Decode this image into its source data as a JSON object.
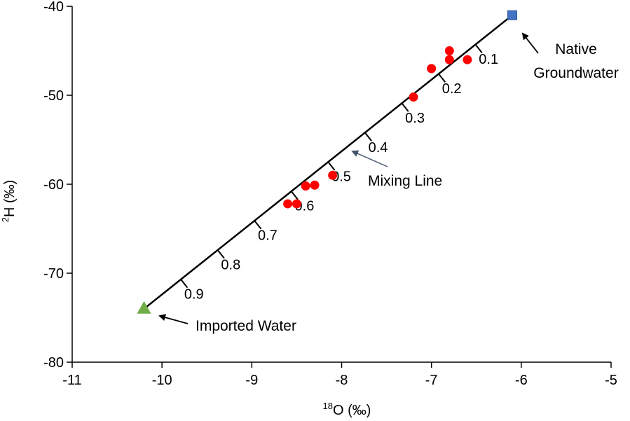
{
  "chart_data": {
    "type": "scatter",
    "xlabel": {
      "sup": "18",
      "text": "O (‰)"
    },
    "ylabel": {
      "sup": "2",
      "text": "H (‰)"
    },
    "xlim": [
      -11,
      -5
    ],
    "ylim": [
      -80,
      -40
    ],
    "x_ticks": [
      -11,
      -10,
      -9,
      -8,
      -7,
      -6,
      -5
    ],
    "y_ticks": [
      -80,
      -70,
      -60,
      -50,
      -40
    ],
    "x_tick_labels": [
      "-11",
      "-10",
      "-9",
      "-8",
      "-7",
      "-6",
      "-5"
    ],
    "y_tick_labels": [
      "-80",
      "-70",
      "-60",
      "-50",
      "-40"
    ],
    "grid": false,
    "endmembers": {
      "native": {
        "x": -6.1,
        "y": -41.0,
        "color": "#4472C4",
        "marker": "square"
      },
      "imported": {
        "x": -10.2,
        "y": -74.0,
        "color": "#70AD47",
        "marker": "triangle"
      }
    },
    "mixing_fractions": [
      "0.1",
      "0.2",
      "0.3",
      "0.4",
      "0.5",
      "0.6",
      "0.7",
      "0.8",
      "0.9"
    ],
    "samples": {
      "color": "#FF0000",
      "points": [
        {
          "x": -6.8,
          "y": -45.0
        },
        {
          "x": -6.8,
          "y": -46.0
        },
        {
          "x": -6.6,
          "y": -46.0
        },
        {
          "x": -7.0,
          "y": -47.0
        },
        {
          "x": -7.2,
          "y": -50.2
        },
        {
          "x": -8.1,
          "y": -59.0
        },
        {
          "x": -8.3,
          "y": -60.1
        },
        {
          "x": -8.4,
          "y": -60.2
        },
        {
          "x": -8.5,
          "y": -62.2
        },
        {
          "x": -8.6,
          "y": -62.2
        }
      ]
    },
    "annotations": {
      "native": [
        "Native",
        "Groundwater"
      ],
      "mixing_line": "Mixing Line",
      "imported": "Imported Water"
    },
    "line_color": "#000000",
    "mixing_arrow_color": "#44546A"
  }
}
